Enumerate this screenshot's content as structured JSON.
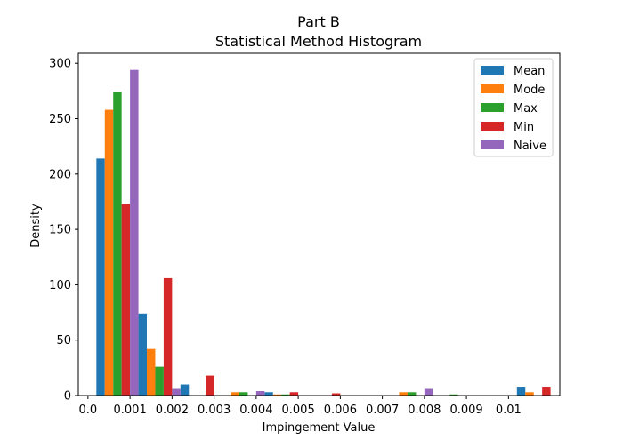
{
  "chart_data": {
    "type": "bar",
    "title": "Part B",
    "subtitle": "Statistical Method Histogram",
    "xlabel": "Impingement Value",
    "ylabel": "Density",
    "xlim": [
      -0.00023,
      0.01122
    ],
    "ylim": [
      0,
      309
    ],
    "bin_width": 0.001,
    "bin_starts": [
      0.0002,
      0.0012,
      0.0022,
      0.0032,
      0.0042,
      0.0052,
      0.0062,
      0.0072,
      0.0082,
      0.0092,
      0.0102
    ],
    "xticks": [
      0.0,
      0.001,
      0.002,
      0.003,
      0.004,
      0.005,
      0.006,
      0.007,
      0.008,
      0.009,
      0.01
    ],
    "xtick_labels": [
      "0.0",
      "0.001",
      "0.002",
      "0.003",
      "0.004",
      "0.005",
      "0.006",
      "0.007",
      "0.008",
      "0.009",
      "0.01"
    ],
    "yticks": [
      0,
      50,
      100,
      150,
      200,
      250,
      300
    ],
    "ytick_labels": [
      "0",
      "50",
      "100",
      "150",
      "200",
      "250",
      "300"
    ],
    "grid": false,
    "legend_position": "top-right",
    "series": [
      {
        "name": "Mean",
        "color": "#1f77b4",
        "values": [
          214,
          74,
          10,
          0,
          3,
          0,
          0,
          0,
          0,
          0,
          8
        ]
      },
      {
        "name": "Mode",
        "color": "#ff7f0e",
        "values": [
          258,
          42,
          0,
          3,
          1,
          0,
          0,
          3,
          0,
          0,
          3
        ]
      },
      {
        "name": "Max",
        "color": "#2ca02c",
        "values": [
          274,
          26,
          0,
          3,
          1,
          0,
          0,
          3,
          1,
          0,
          0
        ]
      },
      {
        "name": "Min",
        "color": "#d62728",
        "values": [
          173,
          106,
          18,
          0,
          3,
          2,
          0,
          0,
          0,
          0,
          8
        ]
      },
      {
        "name": "Naive",
        "color": "#9467bd",
        "values": [
          294,
          6,
          0,
          4,
          0,
          0,
          0,
          6,
          0,
          0,
          0
        ]
      }
    ]
  }
}
